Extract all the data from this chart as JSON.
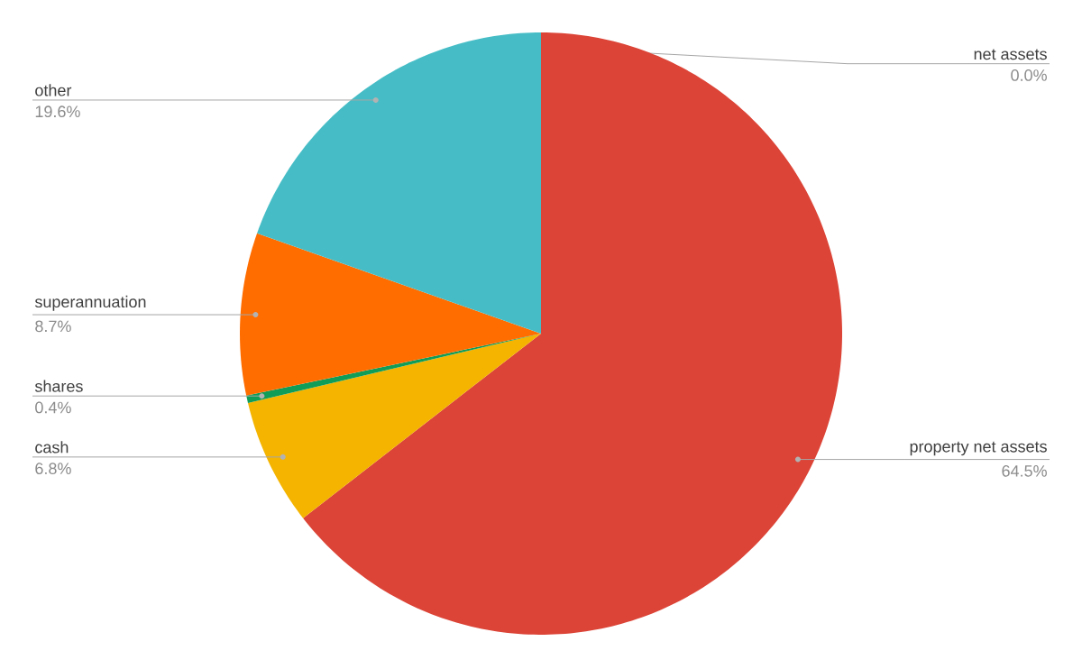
{
  "chart_data": {
    "type": "pie",
    "categories": [
      "net assets",
      "property net assets",
      "cash",
      "shares",
      "superannuation",
      "other"
    ],
    "values": [
      0.0,
      64.5,
      6.8,
      0.4,
      8.7,
      19.6
    ],
    "value_labels": [
      "0.0%",
      "64.5%",
      "6.8%",
      "0.4%",
      "8.7%",
      "19.6%"
    ],
    "colors": [
      "#3366cc",
      "#dc4437",
      "#f4b400",
      "#0f9d58",
      "#ff6d00",
      "#46bdc6"
    ]
  }
}
